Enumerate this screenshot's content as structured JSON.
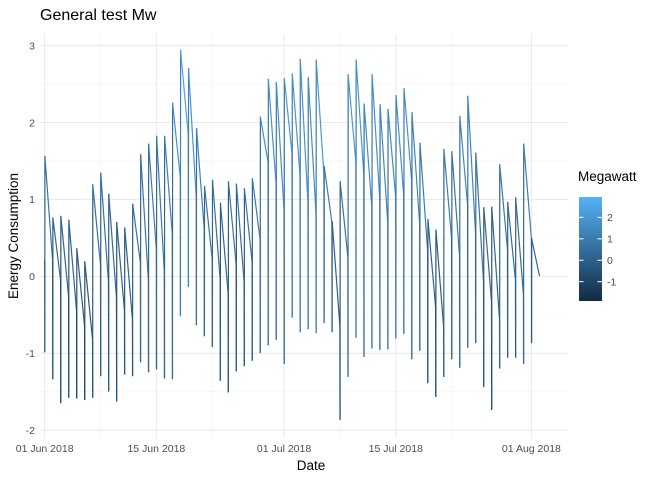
{
  "chart_data": {
    "type": "line",
    "title": "General test Mw",
    "xlabel": "Date",
    "ylabel": "Energy Consumption",
    "x_range": [
      "2018-05-31T10:00",
      "2018-08-05T14:00"
    ],
    "ylim": [
      -2.1,
      3.15
    ],
    "x_ticks": [
      {
        "date": "2018-06-01",
        "label": "01 Jun 2018"
      },
      {
        "date": "2018-06-15",
        "label": "15 Jun 2018"
      },
      {
        "date": "2018-07-01",
        "label": "01 Jul 2018"
      },
      {
        "date": "2018-07-15",
        "label": "15 Jul 2018"
      },
      {
        "date": "2018-08-01",
        "label": "01 Aug 2018"
      }
    ],
    "x_minor_ticks": [
      "2018-06-08",
      "2018-06-22",
      "2018-07-08",
      "2018-07-22"
    ],
    "y_ticks": [
      -2,
      -1,
      0,
      1,
      2,
      3
    ],
    "y_minor_ticks": [
      -1.5,
      -0.5,
      0.5,
      1.5,
      2.5
    ],
    "grid": true,
    "legend": {
      "title": "Megawatt",
      "position": "right",
      "type": "colorbar",
      "ticks": [
        2,
        1,
        0,
        -1
      ],
      "range": [
        -1.9,
        2.95
      ],
      "color_low": "#132B43",
      "color_high": "#56B1F7"
    },
    "series": [
      {
        "days": [
          {
            "date": "2018-06-01",
            "open": 0.21,
            "low": -0.98,
            "high": 1.56,
            "close": 0.2
          },
          {
            "date": "2018-06-02",
            "open": 0.2,
            "low": -1.33,
            "high": 0.76,
            "close": -0.05
          },
          {
            "date": "2018-06-03",
            "open": -0.05,
            "low": -1.64,
            "high": 0.78,
            "close": -0.26
          },
          {
            "date": "2018-06-04",
            "open": -0.26,
            "low": -1.57,
            "high": 0.73,
            "close": -0.45
          },
          {
            "date": "2018-06-05",
            "open": -0.45,
            "low": -1.58,
            "high": 0.36,
            "close": -0.64
          },
          {
            "date": "2018-06-06",
            "open": -0.64,
            "low": -1.6,
            "high": 0.19,
            "close": -0.82
          },
          {
            "date": "2018-06-07",
            "open": -0.82,
            "low": -1.57,
            "high": 1.19,
            "close": 0.15
          },
          {
            "date": "2018-06-08",
            "open": 0.15,
            "low": -1.29,
            "high": 1.34,
            "close": -0.08
          },
          {
            "date": "2018-06-09",
            "open": -0.08,
            "low": -1.49,
            "high": 1.07,
            "close": -0.28
          },
          {
            "date": "2018-06-10",
            "open": -0.28,
            "low": -1.62,
            "high": 0.7,
            "close": -0.44
          },
          {
            "date": "2018-06-11",
            "open": -0.44,
            "low": -1.27,
            "high": 0.63,
            "close": -0.56
          },
          {
            "date": "2018-06-12",
            "open": -0.56,
            "low": -1.29,
            "high": 0.94,
            "close": 0.18
          },
          {
            "date": "2018-06-13",
            "open": 0.18,
            "low": -1.11,
            "high": 1.58,
            "close": -0.05
          },
          {
            "date": "2018-06-14",
            "open": -0.05,
            "low": -1.24,
            "high": 1.72,
            "close": 0.35
          },
          {
            "date": "2018-06-15",
            "open": 0.35,
            "low": -1.2,
            "high": 1.82,
            "close": 0.05
          },
          {
            "date": "2018-06-16",
            "open": 0.05,
            "low": -1.32,
            "high": 1.82,
            "close": 0.54
          },
          {
            "date": "2018-06-17",
            "open": 0.54,
            "low": -1.33,
            "high": 2.25,
            "close": 1.29
          },
          {
            "date": "2018-06-18",
            "open": 1.29,
            "low": -0.51,
            "high": 2.94,
            "close": 1.83
          },
          {
            "date": "2018-06-19",
            "open": 1.83,
            "low": -0.13,
            "high": 2.7,
            "close": 1.02
          },
          {
            "date": "2018-06-20",
            "open": 1.02,
            "low": -0.63,
            "high": 1.92,
            "close": 0.61
          },
          {
            "date": "2018-06-21",
            "open": 0.61,
            "low": -0.77,
            "high": 1.17,
            "close": 0.22
          },
          {
            "date": "2018-06-22",
            "open": 0.22,
            "low": -0.91,
            "high": 1.25,
            "close": -0.05
          },
          {
            "date": "2018-06-23",
            "open": -0.05,
            "low": -1.35,
            "high": 0.95,
            "close": -0.23
          },
          {
            "date": "2018-06-24",
            "open": -0.23,
            "low": -1.5,
            "high": 1.23,
            "close": 0.15
          },
          {
            "date": "2018-06-25",
            "open": 0.15,
            "low": -1.23,
            "high": 1.2,
            "close": -0.08
          },
          {
            "date": "2018-06-26",
            "open": -0.08,
            "low": -1.16,
            "high": 1.14,
            "close": 0.18
          },
          {
            "date": "2018-06-27",
            "open": 0.18,
            "low": -1.09,
            "high": 1.27,
            "close": 0.48
          },
          {
            "date": "2018-06-28",
            "open": 0.48,
            "low": -0.99,
            "high": 2.07,
            "close": 1.48
          },
          {
            "date": "2018-06-29",
            "open": 1.48,
            "low": -0.89,
            "high": 2.56,
            "close": 1.2
          },
          {
            "date": "2018-06-30",
            "open": 1.2,
            "low": -0.82,
            "high": 2.52,
            "close": 0.85
          },
          {
            "date": "2018-07-01",
            "open": 0.85,
            "low": -1.13,
            "high": 2.57,
            "close": 1.59
          },
          {
            "date": "2018-07-02",
            "open": 1.59,
            "low": -0.53,
            "high": 2.63,
            "close": 1.32
          },
          {
            "date": "2018-07-03",
            "open": 1.32,
            "low": -0.72,
            "high": 2.82,
            "close": 0.95
          },
          {
            "date": "2018-07-04",
            "open": 0.95,
            "low": -0.68,
            "high": 2.58,
            "close": 0.82
          },
          {
            "date": "2018-07-05",
            "open": 0.82,
            "low": -0.73,
            "high": 2.81,
            "close": 1.32
          },
          {
            "date": "2018-07-06",
            "open": 1.32,
            "low": -0.6,
            "high": 1.43,
            "close": 0.7
          },
          {
            "date": "2018-07-07",
            "open": 0.7,
            "low": -0.72,
            "high": 0.71,
            "close": -0.65
          },
          {
            "date": "2018-07-08",
            "open": -0.65,
            "low": -1.86,
            "high": 1.23,
            "close": 0.25
          },
          {
            "date": "2018-07-09",
            "open": 0.25,
            "low": -1.3,
            "high": 2.62,
            "close": 1.48
          },
          {
            "date": "2018-07-10",
            "open": 1.48,
            "low": -0.79,
            "high": 2.81,
            "close": 1.31
          },
          {
            "date": "2018-07-11",
            "open": 1.31,
            "low": -1.04,
            "high": 2.24,
            "close": 0.9
          },
          {
            "date": "2018-07-12",
            "open": 0.9,
            "low": -0.93,
            "high": 2.62,
            "close": 1.0
          },
          {
            "date": "2018-07-13",
            "open": 1.0,
            "low": -0.95,
            "high": 2.23,
            "close": 0.69
          },
          {
            "date": "2018-07-14",
            "open": 0.69,
            "low": -0.94,
            "high": 2.17,
            "close": 1.02
          },
          {
            "date": "2018-07-15",
            "open": 1.02,
            "low": -0.8,
            "high": 2.35,
            "close": 1.05
          },
          {
            "date": "2018-07-16",
            "open": 1.05,
            "low": -0.74,
            "high": 2.44,
            "close": 1.23
          },
          {
            "date": "2018-07-17",
            "open": 1.23,
            "low": -1.07,
            "high": 2.13,
            "close": 0.67
          },
          {
            "date": "2018-07-18",
            "open": 0.67,
            "low": -0.96,
            "high": 1.73,
            "close": 0.32
          },
          {
            "date": "2018-07-19",
            "open": 0.32,
            "low": -1.38,
            "high": 0.74,
            "close": -0.41
          },
          {
            "date": "2018-07-20",
            "open": -0.41,
            "low": -1.56,
            "high": 0.6,
            "close": -0.66
          },
          {
            "date": "2018-07-21",
            "open": -0.66,
            "low": -1.3,
            "high": 1.65,
            "close": 0.49
          },
          {
            "date": "2018-07-22",
            "open": 0.49,
            "low": -1.07,
            "high": 1.62,
            "close": 0.25
          },
          {
            "date": "2018-07-23",
            "open": 0.25,
            "low": -1.18,
            "high": 2.08,
            "close": 0.92
          },
          {
            "date": "2018-07-24",
            "open": 0.92,
            "low": -0.92,
            "high": 2.34,
            "close": 0.55
          },
          {
            "date": "2018-07-25",
            "open": 0.55,
            "low": -0.86,
            "high": 1.6,
            "close": -0.08
          },
          {
            "date": "2018-07-26",
            "open": -0.08,
            "low": -1.43,
            "high": 0.89,
            "close": -0.33
          },
          {
            "date": "2018-07-27",
            "open": -0.33,
            "low": -1.73,
            "high": 0.9,
            "close": -0.56
          },
          {
            "date": "2018-07-28",
            "open": -0.56,
            "low": -1.19,
            "high": 1.45,
            "close": 0.35
          },
          {
            "date": "2018-07-29",
            "open": 0.35,
            "low": -1.05,
            "high": 0.96,
            "close": -0.05
          },
          {
            "date": "2018-07-30",
            "open": -0.05,
            "low": -1.05,
            "high": 1.02,
            "close": -0.24
          },
          {
            "date": "2018-07-31",
            "open": -0.24,
            "low": -1.13,
            "high": 1.72,
            "close": 0.49
          },
          {
            "date": "2018-08-01",
            "open": 0.49,
            "low": -0.86,
            "high": 0.49,
            "close": 0.01
          }
        ]
      }
    ]
  }
}
